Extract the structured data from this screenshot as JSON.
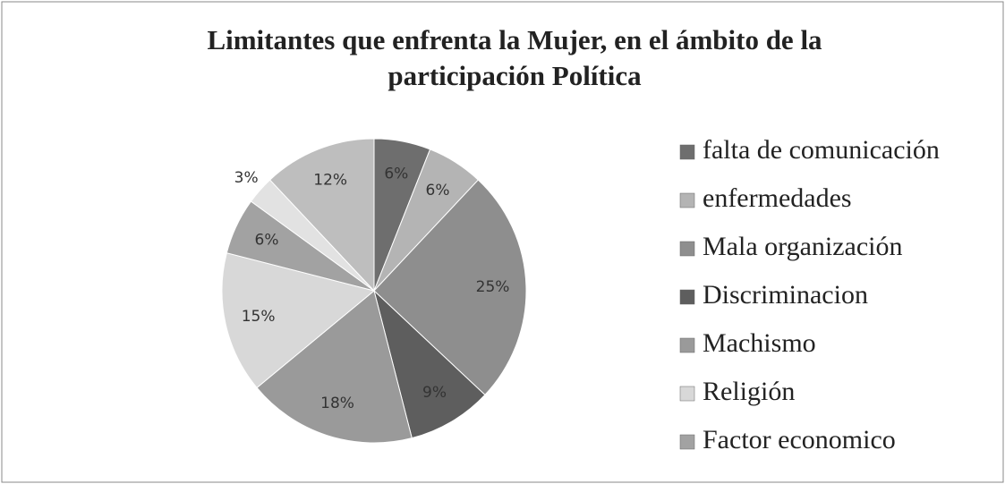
{
  "chart_data": {
    "type": "pie",
    "title": [
      "Limitantes que enfrenta la Mujer, en el ámbito de la",
      "participación Política"
    ],
    "categories": [
      "falta de comunicación",
      "enfermedades",
      "Mala organización",
      "Discriminacion",
      "Machismo",
      "Religión",
      "Factor economico",
      null,
      null
    ],
    "values": [
      6,
      6,
      25,
      9,
      18,
      15,
      6,
      3,
      12
    ],
    "value_labels": [
      "6%",
      "6%",
      "25%",
      "9%",
      "18%",
      "15%",
      "6%",
      "3%",
      "12%"
    ],
    "colors": [
      "#6e6e6e",
      "#b4b4b4",
      "#8e8e8e",
      "#5e5e5e",
      "#9a9a9a",
      "#d8d8d8",
      "#a2a2a2",
      "#e2e2e2",
      "#bebebe"
    ]
  }
}
